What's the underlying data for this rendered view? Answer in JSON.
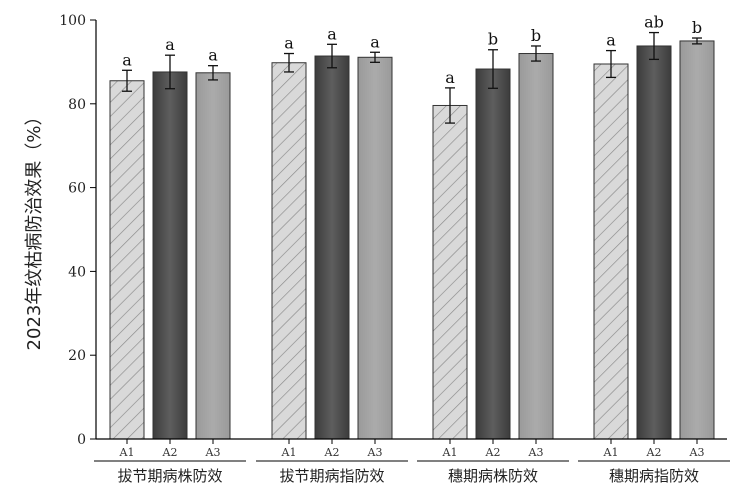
{
  "chart_data": {
    "type": "bar",
    "ylabel": "2023年纹枯病防治效果（%）",
    "ylim": [
      0,
      100
    ],
    "yticks": [
      0,
      20,
      40,
      60,
      80,
      100
    ],
    "categories": [
      "拔节期病株防效",
      "拔节期病指防效",
      "穗期病株防效",
      "穗期病指防效"
    ],
    "series": [
      {
        "name": "A1",
        "fill": "hatch",
        "values": [
          85.5,
          89.8,
          79.6,
          89.5
        ],
        "errors": [
          2.5,
          2.2,
          4.2,
          3.2
        ],
        "labels": [
          "a",
          "a",
          "a",
          "a"
        ]
      },
      {
        "name": "A2",
        "fill": "dark",
        "values": [
          87.6,
          91.4,
          88.3,
          93.8
        ],
        "errors": [
          4.0,
          2.8,
          4.6,
          3.2
        ],
        "labels": [
          "a",
          "a",
          "b",
          "ab"
        ]
      },
      {
        "name": "A3",
        "fill": "light",
        "values": [
          87.4,
          91.1,
          92.0,
          95.0
        ],
        "errors": [
          1.7,
          1.2,
          1.8,
          0.7
        ],
        "labels": [
          "a",
          "a",
          "b",
          "b"
        ]
      }
    ],
    "colors": {
      "hatch_bg": "#d9d9d9",
      "hatch_line": "#8a8a8a",
      "dark": "#555555",
      "light": "#a6a6a6"
    }
  }
}
